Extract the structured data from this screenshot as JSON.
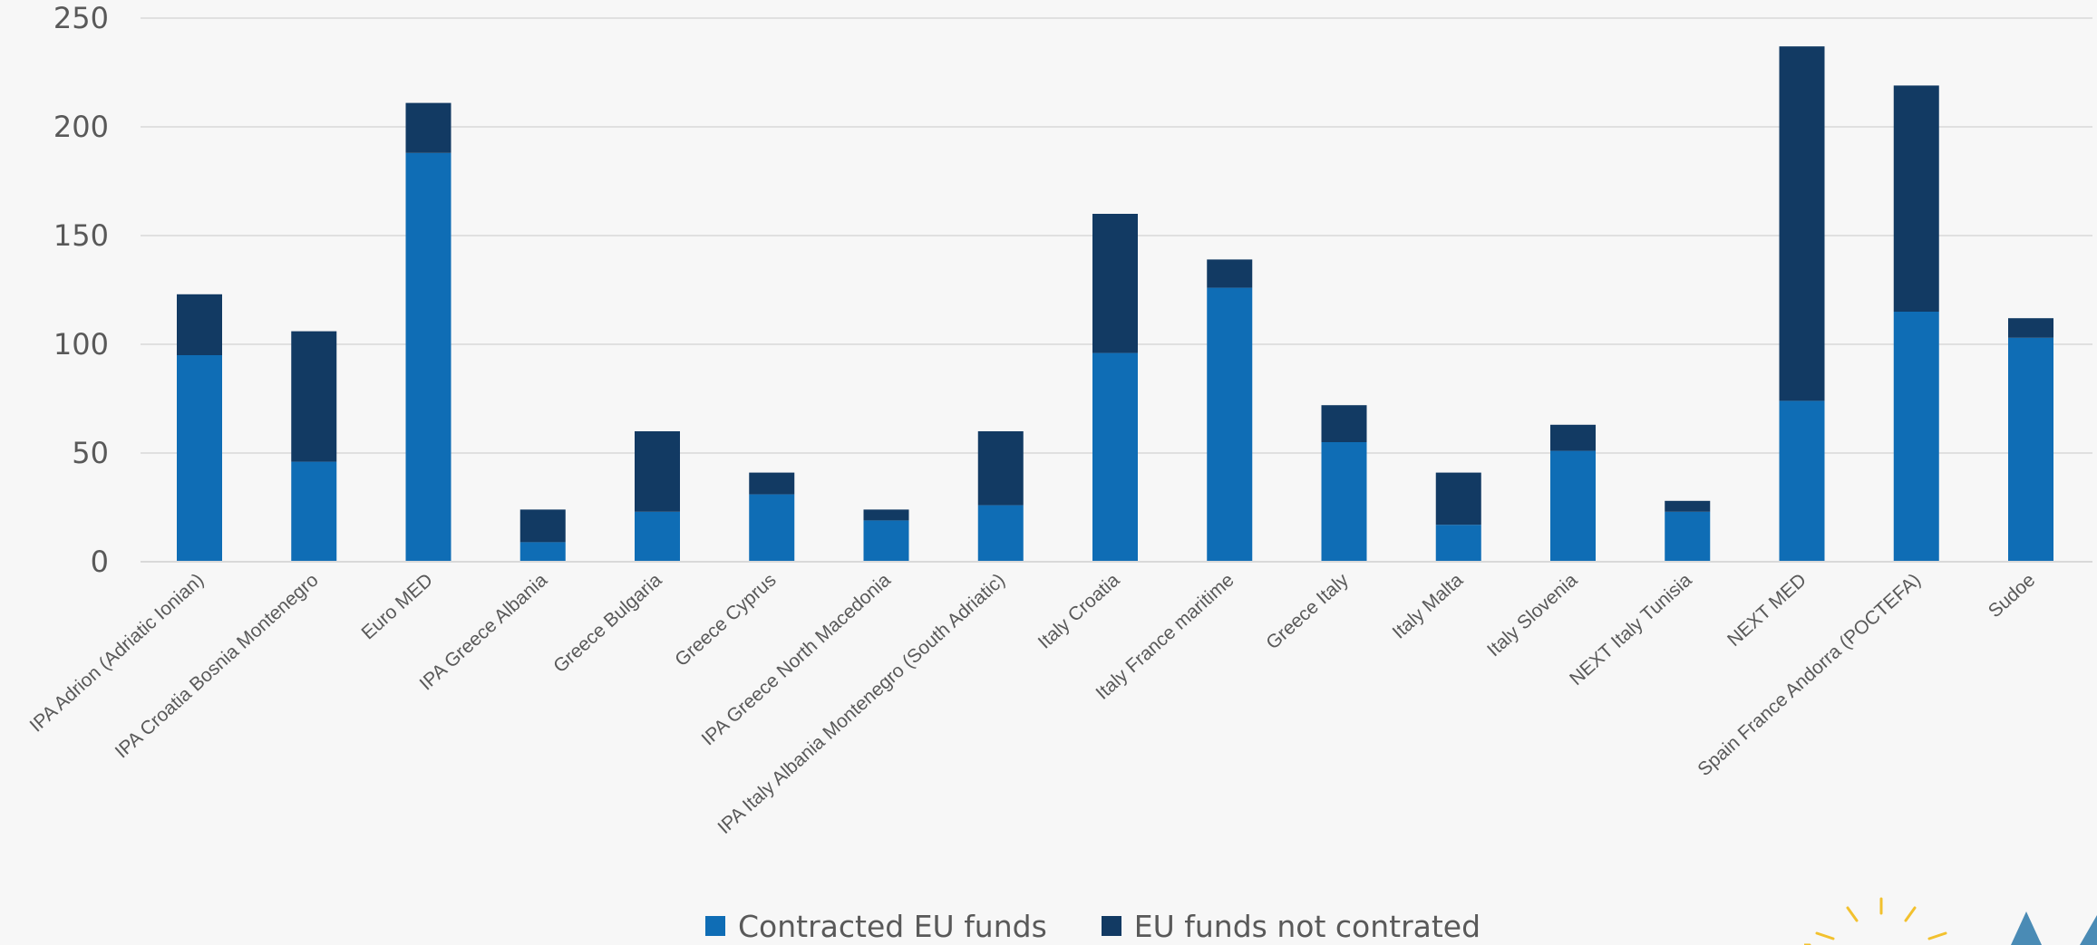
{
  "chart_data": {
    "type": "bar",
    "stacked": true,
    "title": "",
    "xlabel": "",
    "ylabel": "",
    "ylim": [
      0,
      250
    ],
    "yticks": [
      0,
      50,
      100,
      150,
      200,
      250
    ],
    "grid": true,
    "legend_position": "bottom",
    "categories": [
      "IPA Adrion (Adriatic Ionian)",
      "IPA Croatia Bosnia Montenegro",
      "Euro MED",
      "IPA Greece Albania",
      "Greece Bulgaria",
      "Greece Cyprus",
      "IPA Greece North Macedonia",
      "IPA Italy Albania Montenegro (South Adriatic)",
      "Italy Croatia",
      "Italy France maritime",
      "Greece Italy",
      "Italy Malta",
      "Italy Slovenia",
      "NEXT Italy Tunisia",
      "NEXT MED",
      "Spain France Andorra (POCTEFA)",
      "Sudoe"
    ],
    "series": [
      {
        "name": "Contracted EU funds",
        "color": "#0f6db5",
        "values": [
          95,
          46,
          188,
          9,
          23,
          31,
          19,
          26,
          96,
          126,
          55,
          17,
          51,
          23,
          74,
          115,
          103
        ]
      },
      {
        "name": "EU funds not contrated",
        "color": "#123a63",
        "values": [
          28,
          60,
          23,
          15,
          37,
          10,
          5,
          34,
          64,
          13,
          17,
          24,
          12,
          5,
          163,
          104,
          9
        ]
      }
    ]
  },
  "colors": {
    "background": "#f7f7f7",
    "gridline": "#d9d9d9",
    "axis_text": "#595959",
    "logo_sun": "#f2c12e",
    "logo_triangle": "#4a8bb5"
  }
}
